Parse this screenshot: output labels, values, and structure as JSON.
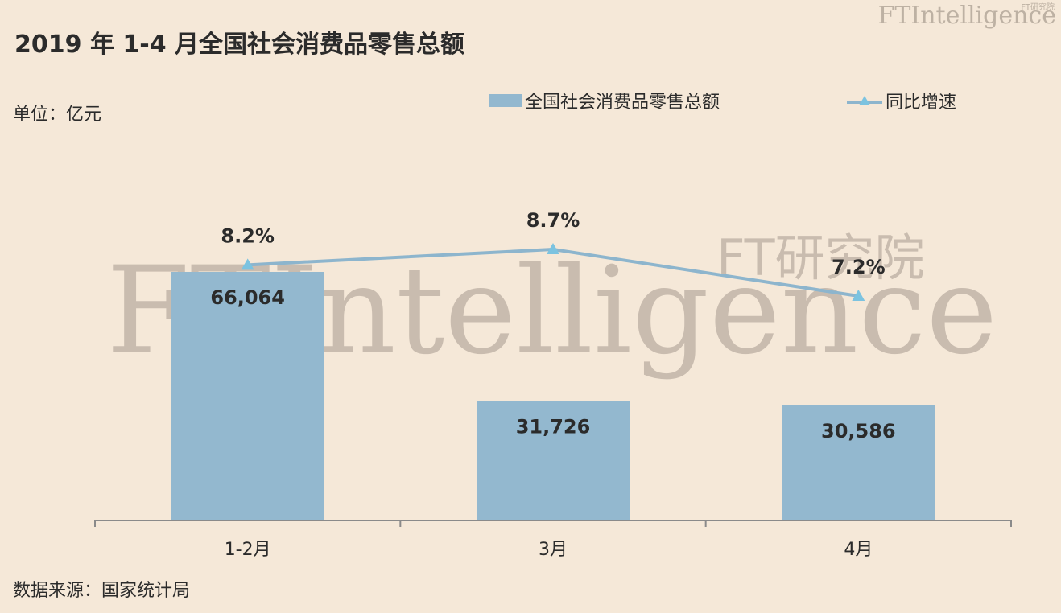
{
  "header": {
    "title": "2019 年 1-4 月全国社会消费品零售总额",
    "brand": "FTIntelligence",
    "brand_sub": "FT研究院"
  },
  "unit_label": "单位：亿元",
  "source_label": "数据来源：国家统计局",
  "watermark": {
    "main": "FTIntelligence",
    "sub": "FT研究院"
  },
  "colors": {
    "bar": "#93b8cf",
    "line": "#8db5cd",
    "marker": "#7cc3e0",
    "axis": "#8a8a8a"
  },
  "chart_data": {
    "type": "bar",
    "categories": [
      "1-2月",
      "3月",
      "4月"
    ],
    "bar_labels": [
      "66,064",
      "31,726",
      "30,586"
    ],
    "line_labels": [
      "8.2%",
      "8.7%",
      "7.2%"
    ],
    "series": [
      {
        "name": "全国社会消费品零售总额",
        "type": "bar",
        "values": [
          66064,
          31726,
          30586
        ]
      },
      {
        "name": "同比增速",
        "type": "line",
        "values": [
          8.2,
          8.7,
          7.2
        ],
        "axis": "secondary"
      }
    ],
    "title": "2019 年 1-4 月全国社会消费品零售总额",
    "ylabel": "单位：亿元",
    "ylim": [
      0,
      66064
    ],
    "legend": "top-right",
    "grid": false
  }
}
